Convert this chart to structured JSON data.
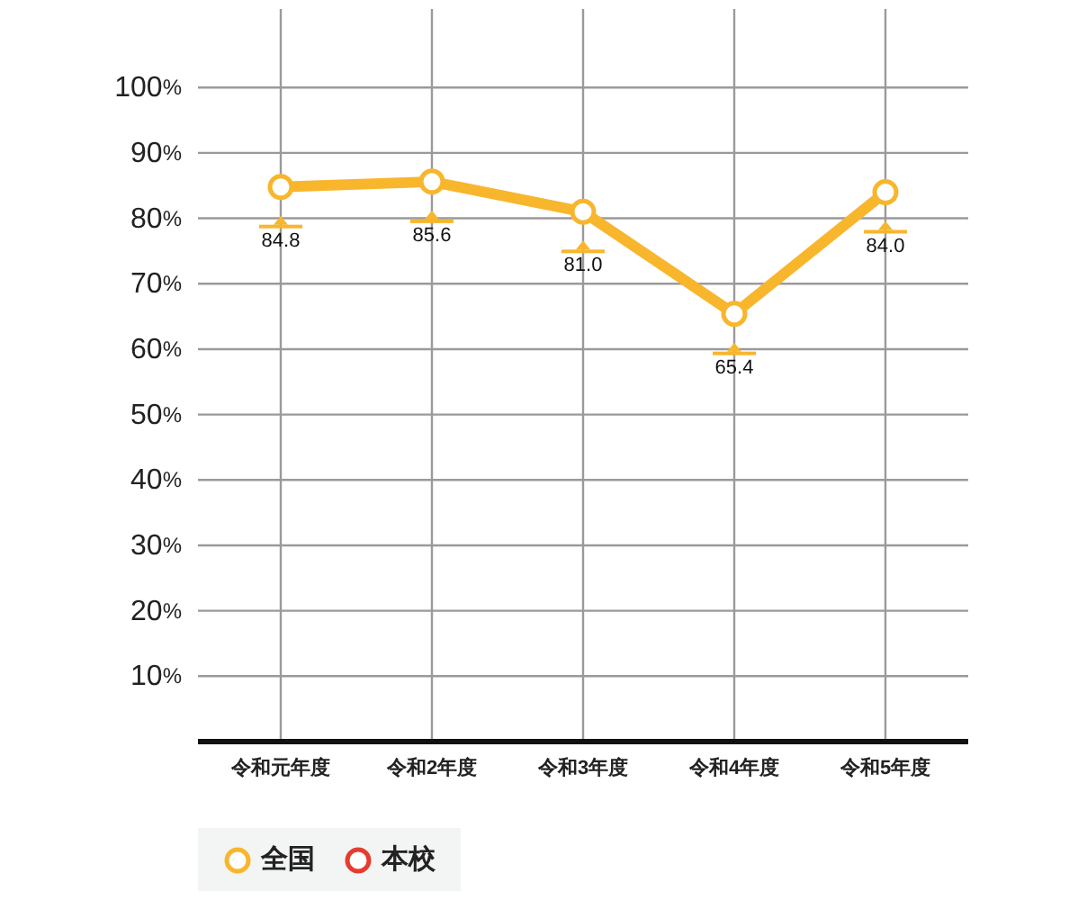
{
  "chart_data": {
    "type": "line",
    "categories": [
      "令和元年度",
      "令和2年度",
      "令和3年度",
      "令和4年度",
      "令和5年度"
    ],
    "series": [
      {
        "name": "全国",
        "color": "#f8b62d",
        "values": [
          84.8,
          85.6,
          81.0,
          65.4,
          84.0
        ],
        "value_labels": [
          "84.8",
          "85.6",
          "81.0",
          "65.4",
          "84.0"
        ]
      },
      {
        "name": "本校",
        "color": "#e63c2f",
        "values": [
          null,
          null,
          null,
          null,
          null
        ]
      }
    ],
    "ylim": [
      0,
      112
    ],
    "yticks": [
      {
        "value": 10,
        "label": "10%"
      },
      {
        "value": 20,
        "label": "20%"
      },
      {
        "value": 30,
        "label": "30%"
      },
      {
        "value": 40,
        "label": "40%"
      },
      {
        "value": 50,
        "label": "50%"
      },
      {
        "value": 60,
        "label": "60%"
      },
      {
        "value": 70,
        "label": "70%"
      },
      {
        "value": 80,
        "label": "80%"
      },
      {
        "value": 90,
        "label": "90%"
      },
      {
        "value": 100,
        "label": "100%"
      }
    ],
    "grid": true,
    "legend": "bottom left",
    "marker": "circle",
    "line_style": "solid"
  }
}
